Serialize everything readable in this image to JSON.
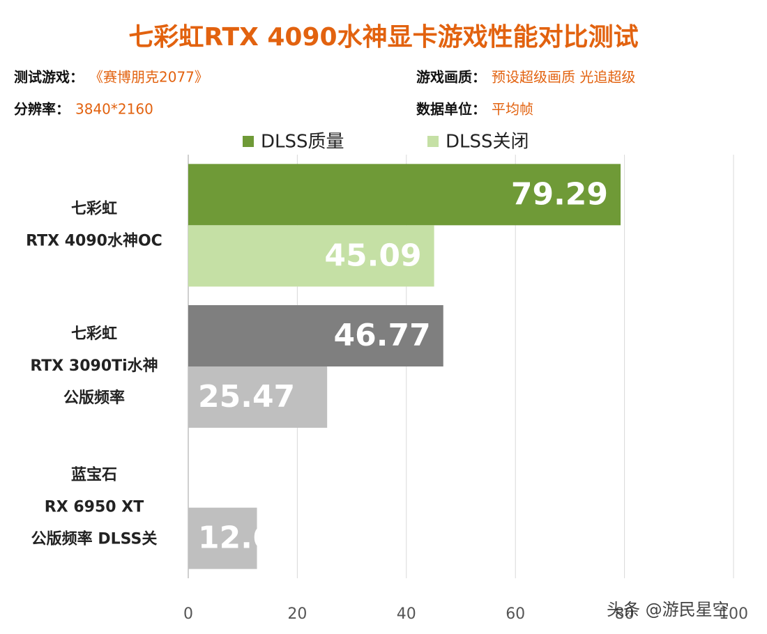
{
  "chart_data": {
    "type": "bar",
    "orientation": "horizontal",
    "title": "七彩虹RTX 4090水神显卡游戏性能对比测试",
    "info": [
      {
        "label": "测试游戏：",
        "value": "《赛博朋克2077》"
      },
      {
        "label": "游戏画质：",
        "value": "预设超级画质 光追超级"
      },
      {
        "label": "分辨率：",
        "value": "3840*2160"
      },
      {
        "label": "数据单位：",
        "value": "平均帧"
      }
    ],
    "categories": [
      "七彩虹\nRTX 4090水神OC",
      "七彩虹\nRTX 3090Ti水神\n公版频率",
      "蓝宝石\nRX 6950 XT\n公版频率 DLSS关"
    ],
    "series": [
      {
        "name": "DLSS质量",
        "color": "#6f9a37",
        "colors": [
          "#6f9a37",
          "#7f7f7f",
          "#7f7f7f"
        ],
        "values": [
          79.29,
          46.77,
          null
        ]
      },
      {
        "name": "DLSS关闭",
        "color": "#c5e0a5",
        "colors": [
          "#c5e0a5",
          "#bfbfbf",
          "#bfbfbf"
        ],
        "values": [
          45.09,
          25.47,
          12.6
        ]
      }
    ],
    "xlim": [
      0,
      100
    ],
    "xticks": [
      0,
      20,
      40,
      60,
      80,
      100
    ],
    "grid": true,
    "watermark": "头条 @游民星空"
  }
}
